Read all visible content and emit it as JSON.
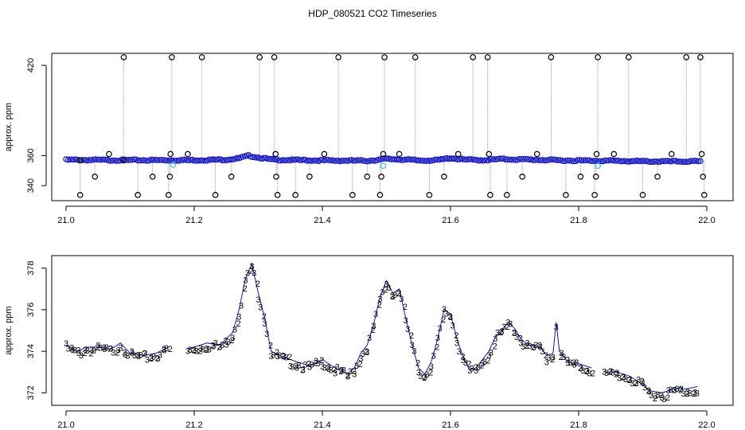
{
  "title": "HDP_080521  CO2 Timeseries",
  "colors": {
    "outline": "#000000",
    "series_blue": "#1414c8",
    "series_cyan": "#3cc8dc",
    "series_green": "#14b414",
    "connector_gray": "#999999"
  },
  "chart_data": [
    {
      "type": "scatter",
      "ylabel": "approx. ppm",
      "xlabel": "",
      "xlim": [
        21.0,
        22.0
      ],
      "ylim": [
        330,
        428
      ],
      "xticks": [
        "21.0",
        "21.2",
        "21.4",
        "21.6",
        "21.8",
        "22.0"
      ],
      "yticks": [
        "340",
        "360",
        "420"
      ],
      "grid": false,
      "legend": "none",
      "baseline": [
        [
          21.0,
          357.4
        ],
        [
          21.1,
          357.2
        ],
        [
          21.2,
          357.2
        ],
        [
          21.25,
          357.6
        ],
        [
          21.27,
          358.4
        ],
        [
          21.285,
          360.2
        ],
        [
          21.3,
          359.0
        ],
        [
          21.32,
          357.6
        ],
        [
          21.35,
          357.3
        ],
        [
          21.4,
          357.0
        ],
        [
          21.47,
          356.8
        ],
        [
          21.5,
          358.0
        ],
        [
          21.52,
          357.8
        ],
        [
          21.55,
          357.0
        ],
        [
          21.58,
          357.2
        ],
        [
          21.6,
          358.6
        ],
        [
          21.62,
          357.6
        ],
        [
          21.65,
          357.2
        ],
        [
          21.68,
          357.9
        ],
        [
          21.72,
          357.6
        ],
        [
          21.78,
          357.0
        ],
        [
          21.85,
          356.8
        ],
        [
          21.9,
          356.4
        ],
        [
          21.99,
          356.3
        ]
      ],
      "cyan_points": [
        [
          21.167,
          353.8
        ],
        [
          21.495,
          353.2
        ],
        [
          21.83,
          353.2
        ]
      ],
      "outlier_points": [
        [
          21.022,
          356.9
        ],
        [
          21.022,
          333.8
        ],
        [
          21.045,
          346.0
        ],
        [
          21.067,
          361.0
        ],
        [
          21.09,
          356.8
        ],
        [
          21.09,
          425.4
        ],
        [
          21.112,
          333.8
        ],
        [
          21.135,
          346.0
        ],
        [
          21.16,
          333.8
        ],
        [
          21.162,
          346.0
        ],
        [
          21.163,
          361.0
        ],
        [
          21.165,
          425.4
        ],
        [
          21.19,
          361.0
        ],
        [
          21.212,
          425.4
        ],
        [
          21.233,
          333.8
        ],
        [
          21.258,
          346.0
        ],
        [
          21.302,
          425.4
        ],
        [
          21.325,
          425.4
        ],
        [
          21.327,
          361.0
        ],
        [
          21.328,
          346.0
        ],
        [
          21.33,
          333.8
        ],
        [
          21.358,
          333.8
        ],
        [
          21.38,
          346.0
        ],
        [
          21.403,
          361.0
        ],
        [
          21.425,
          425.4
        ],
        [
          21.447,
          333.8
        ],
        [
          21.47,
          346.0
        ],
        [
          21.49,
          333.8
        ],
        [
          21.492,
          346.0
        ],
        [
          21.495,
          361.0
        ],
        [
          21.497,
          425.4
        ],
        [
          21.52,
          361.0
        ],
        [
          21.545,
          425.4
        ],
        [
          21.567,
          333.8
        ],
        [
          21.59,
          346.0
        ],
        [
          21.612,
          361.0
        ],
        [
          21.635,
          425.4
        ],
        [
          21.658,
          425.4
        ],
        [
          21.66,
          361.0
        ],
        [
          21.662,
          333.8
        ],
        [
          21.688,
          333.8
        ],
        [
          21.712,
          346.0
        ],
        [
          21.735,
          361.0
        ],
        [
          21.757,
          425.4
        ],
        [
          21.78,
          333.8
        ],
        [
          21.803,
          346.0
        ],
        [
          21.825,
          333.8
        ],
        [
          21.827,
          346.0
        ],
        [
          21.828,
          361.0
        ],
        [
          21.83,
          425.4
        ],
        [
          21.855,
          361.0
        ],
        [
          21.878,
          425.4
        ],
        [
          21.9,
          333.8
        ],
        [
          21.923,
          346.0
        ],
        [
          21.945,
          361.0
        ],
        [
          21.968,
          425.4
        ],
        [
          21.99,
          425.4
        ],
        [
          21.992,
          361.0
        ],
        [
          21.994,
          346.0
        ],
        [
          21.996,
          333.8
        ]
      ]
    },
    {
      "type": "scatter",
      "ylabel": "approx. ppm",
      "xlabel": "",
      "xlim": [
        21.0,
        22.0
      ],
      "ylim": [
        371.4,
        378.6
      ],
      "xticks": [
        "21.0",
        "21.2",
        "21.4",
        "21.6",
        "21.8",
        "22.0"
      ],
      "yticks": [
        "372",
        "374",
        "376",
        "378"
      ],
      "grid": false,
      "legend": "none",
      "marker_text": [
        "3",
        "2"
      ],
      "series": [
        {
          "values": [
            [
              21.0,
              374.3
            ],
            [
              21.01,
              374.1
            ],
            [
              21.02,
              374.0
            ],
            [
              21.03,
              374.2
            ],
            [
              21.05,
              374.2
            ],
            [
              21.07,
              374.1
            ],
            [
              21.085,
              374.4
            ],
            [
              21.1,
              373.9
            ],
            [
              21.12,
              373.8
            ],
            [
              21.14,
              373.9
            ],
            [
              21.16,
              374.2
            ]
          ]
        },
        {
          "values": [
            [
              21.19,
              374.1
            ],
            [
              21.2,
              374.2
            ],
            [
              21.22,
              374.4
            ],
            [
              21.24,
              374.3
            ],
            [
              21.25,
              374.6
            ],
            [
              21.26,
              374.9
            ],
            [
              21.27,
              376.0
            ],
            [
              21.28,
              377.5
            ],
            [
              21.29,
              378.2
            ],
            [
              21.3,
              376.8
            ],
            [
              21.31,
              375.6
            ],
            [
              21.32,
              374.0
            ],
            [
              21.34,
              373.7
            ],
            [
              21.36,
              373.5
            ],
            [
              21.38,
              373.3
            ],
            [
              21.4,
              373.6
            ],
            [
              21.42,
              373.2
            ],
            [
              21.44,
              372.9
            ],
            [
              21.45,
              373.2
            ],
            [
              21.46,
              373.9
            ],
            [
              21.47,
              374.3
            ],
            [
              21.48,
              375.3
            ],
            [
              21.49,
              376.6
            ],
            [
              21.5,
              377.4
            ],
            [
              21.51,
              376.8
            ],
            [
              21.52,
              377.0
            ],
            [
              21.53,
              375.6
            ],
            [
              21.54,
              374.3
            ],
            [
              21.55,
              373.2
            ],
            [
              21.56,
              372.9
            ],
            [
              21.57,
              373.5
            ],
            [
              21.58,
              374.6
            ],
            [
              21.59,
              376.0
            ],
            [
              21.6,
              375.8
            ],
            [
              21.61,
              374.6
            ],
            [
              21.62,
              373.7
            ],
            [
              21.63,
              373.1
            ],
            [
              21.64,
              373.2
            ],
            [
              21.65,
              373.6
            ],
            [
              21.66,
              374.0
            ],
            [
              21.67,
              374.7
            ],
            [
              21.68,
              375.0
            ],
            [
              21.69,
              375.4
            ],
            [
              21.7,
              375.1
            ],
            [
              21.71,
              374.6
            ],
            [
              21.72,
              374.3
            ],
            [
              21.74,
              374.2
            ],
            [
              21.75,
              373.8
            ],
            [
              21.76,
              373.9
            ],
            [
              21.765,
              375.4
            ],
            [
              21.77,
              374.0
            ],
            [
              21.78,
              373.6
            ],
            [
              21.79,
              373.4
            ],
            [
              21.8,
              373.4
            ],
            [
              21.82,
              373.2
            ]
          ]
        },
        {
          "values": [
            [
              21.84,
              373.0
            ],
            [
              21.86,
              373.0
            ],
            [
              21.88,
              372.8
            ],
            [
              21.9,
              372.4
            ],
            [
              21.91,
              372.1
            ],
            [
              21.93,
              372.0
            ],
            [
              21.95,
              372.2
            ],
            [
              21.97,
              372.2
            ],
            [
              21.985,
              372.3
            ]
          ]
        }
      ]
    }
  ]
}
